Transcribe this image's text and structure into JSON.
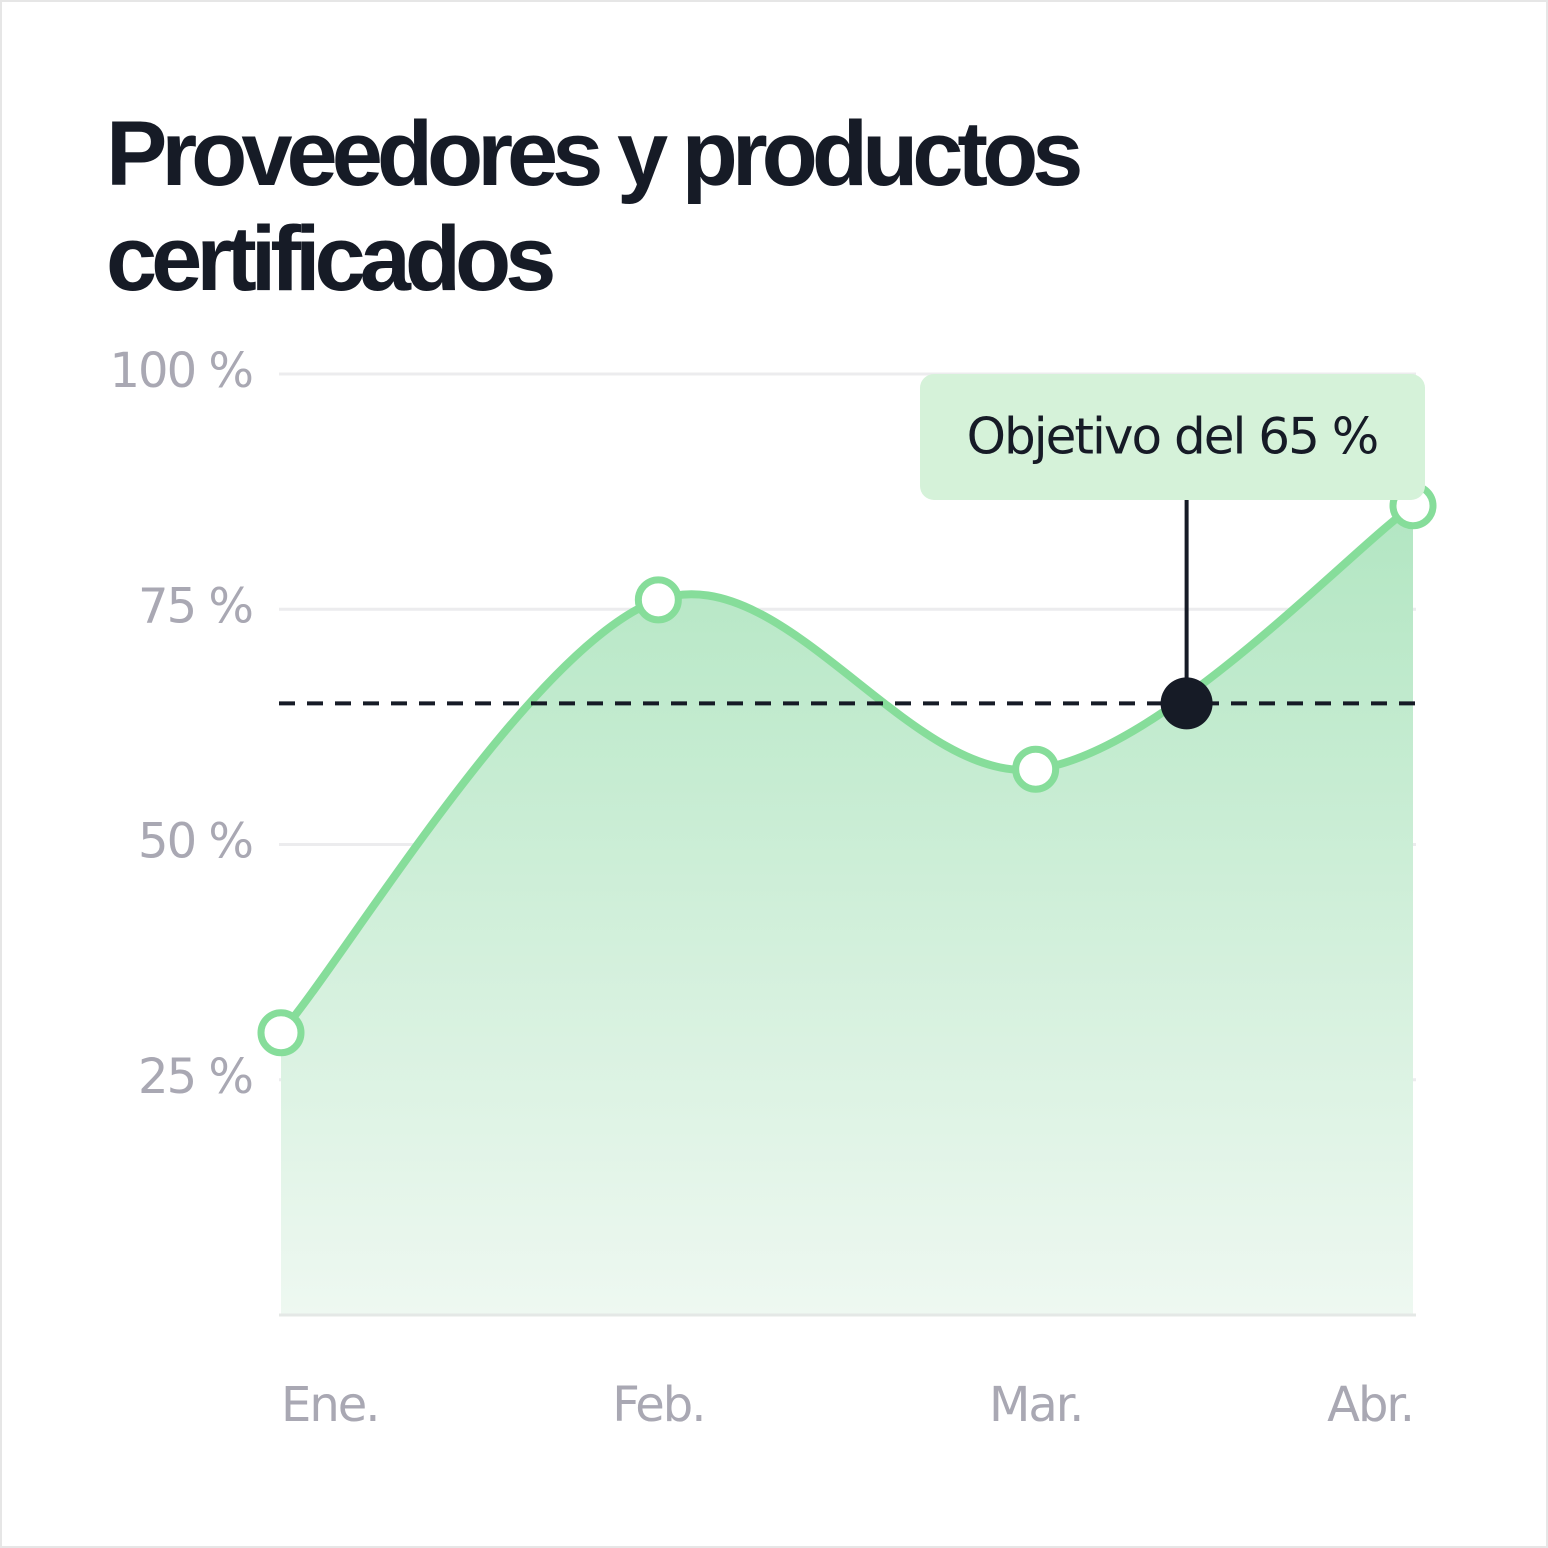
{
  "chart_data": {
    "type": "area",
    "title": [
      "Proveedores y productos",
      "certificados"
    ],
    "categories": [
      "Ene.",
      "Feb.",
      "Mar.",
      "Abr."
    ],
    "values": [
      30,
      76,
      58,
      86
    ],
    "color": "#86dd9a",
    "ylim": [
      0,
      100
    ],
    "yticks": [
      {
        "value": 25,
        "label": "25 %"
      },
      {
        "value": 50,
        "label": "50 %"
      },
      {
        "value": 75,
        "label": "75 %"
      },
      {
        "value": 100,
        "label": "100 %"
      }
    ],
    "grid": true,
    "target": {
      "value": 65,
      "label": "Objetivo del 65 %"
    }
  }
}
